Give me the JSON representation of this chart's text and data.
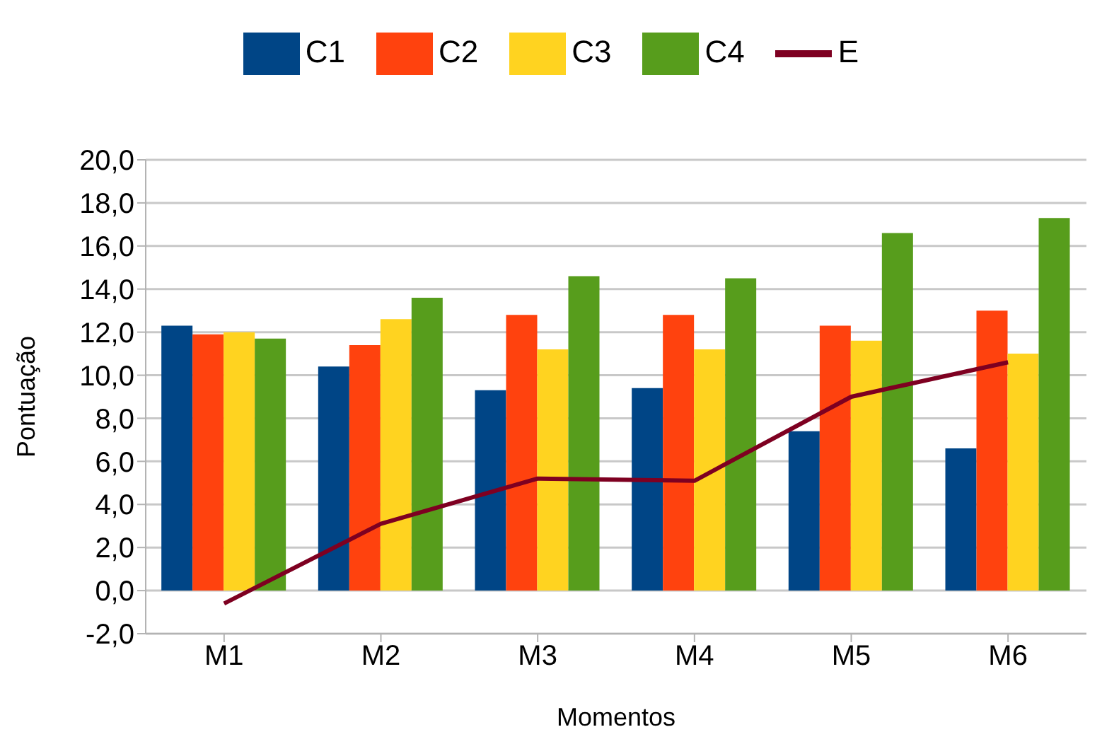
{
  "chart_data": {
    "type": "bar",
    "xlabel": "Momentos",
    "ylabel": "Pontuação",
    "categories": [
      "M1",
      "M2",
      "M3",
      "M4",
      "M5",
      "M6"
    ],
    "series": [
      {
        "name": "C1",
        "color": "#004586",
        "values": [
          12.3,
          10.4,
          9.3,
          9.4,
          7.4,
          6.6
        ]
      },
      {
        "name": "C2",
        "color": "#ff420e",
        "values": [
          11.9,
          11.4,
          12.8,
          12.8,
          12.3,
          13.0
        ]
      },
      {
        "name": "C3",
        "color": "#ffd320",
        "values": [
          12.0,
          12.6,
          11.2,
          11.2,
          11.6,
          11.0
        ]
      },
      {
        "name": "C4",
        "color": "#579d1c",
        "values": [
          11.7,
          13.6,
          14.6,
          14.5,
          16.6,
          17.3
        ]
      },
      {
        "name": "E",
        "type": "line",
        "color": "#7e0021",
        "values": [
          -0.6,
          3.1,
          5.2,
          5.1,
          9.0,
          10.6
        ]
      }
    ],
    "ylim": [
      -2,
      20
    ],
    "yticks": [
      {
        "value": -2,
        "label": "-2,0"
      },
      {
        "value": 0,
        "label": "0,0"
      },
      {
        "value": 2,
        "label": "2,0"
      },
      {
        "value": 4,
        "label": "4,0"
      },
      {
        "value": 6,
        "label": "6,0"
      },
      {
        "value": 8,
        "label": "8,0"
      },
      {
        "value": 10,
        "label": "10,0"
      },
      {
        "value": 12,
        "label": "12,0"
      },
      {
        "value": 14,
        "label": "14,0"
      },
      {
        "value": 16,
        "label": "16,0"
      },
      {
        "value": 18,
        "label": "18,0"
      },
      {
        "value": 20,
        "label": "20,0"
      }
    ],
    "grid": "y",
    "legend": "top",
    "marker": "none"
  }
}
